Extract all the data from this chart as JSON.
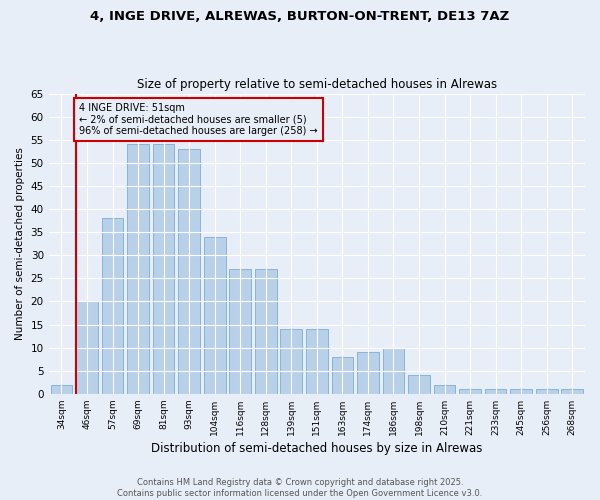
{
  "title1": "4, INGE DRIVE, ALREWAS, BURTON-ON-TRENT, DE13 7AZ",
  "title2": "Size of property relative to semi-detached houses in Alrewas",
  "xlabel": "Distribution of semi-detached houses by size in Alrewas",
  "ylabel": "Number of semi-detached properties",
  "categories": [
    "34sqm",
    "46sqm",
    "57sqm",
    "69sqm",
    "81sqm",
    "93sqm",
    "104sqm",
    "116sqm",
    "128sqm",
    "139sqm",
    "151sqm",
    "163sqm",
    "174sqm",
    "186sqm",
    "198sqm",
    "210sqm",
    "221sqm",
    "233sqm",
    "245sqm",
    "256sqm",
    "268sqm"
  ],
  "values": [
    2,
    20,
    38,
    54,
    54,
    53,
    34,
    27,
    27,
    14,
    14,
    8,
    9,
    10,
    4,
    2,
    1,
    1,
    1,
    1,
    1
  ],
  "bar_color": "#b8d0e8",
  "bar_edge_color": "#7aafd4",
  "highlight_color": "#cc0000",
  "property_line_index": 1,
  "annotation_text": "4 INGE DRIVE: 51sqm\n← 2% of semi-detached houses are smaller (5)\n96% of semi-detached houses are larger (258) →",
  "annotation_box_edgecolor": "#cc0000",
  "ylim": [
    0,
    65
  ],
  "yticks": [
    0,
    5,
    10,
    15,
    20,
    25,
    30,
    35,
    40,
    45,
    50,
    55,
    60,
    65
  ],
  "footer1": "Contains HM Land Registry data © Crown copyright and database right 2025.",
  "footer2": "Contains public sector information licensed under the Open Government Licence v3.0.",
  "bg_color": "#e8eef8",
  "grid_color": "#ffffff"
}
